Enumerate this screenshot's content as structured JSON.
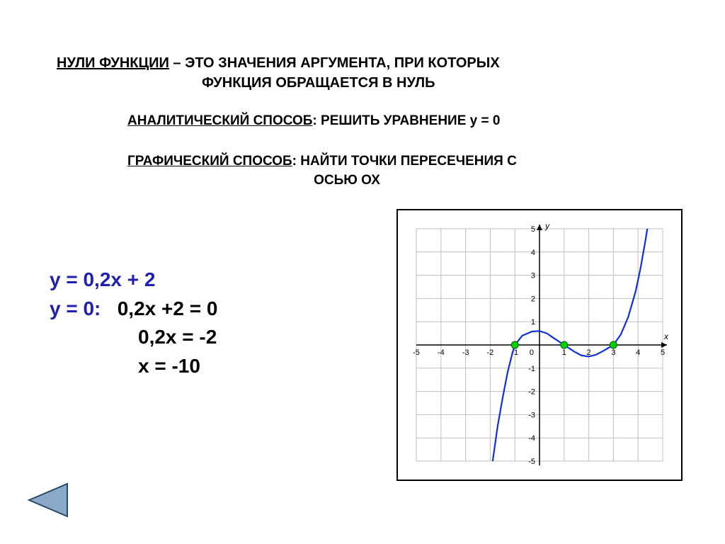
{
  "heading": {
    "term": "НУЛИ ФУНКЦИИ",
    "sep": " – ",
    "rest1": "ЭТО ЗНАЧЕНИЯ АРГУМЕНТА, ПРИ КОТОРЫХ",
    "rest2": "ФУНКЦИЯ ОБРАЩАЕТСЯ В НУЛЬ"
  },
  "analytic": {
    "label": "АНАЛИТИЧЕСКИЙ СПОСОБ",
    "text": ": РЕШИТЬ УРАВНЕНИЕ у = 0"
  },
  "graphic": {
    "label": "ГРАФИЧЕСКИЙ СПОСОБ",
    "text": ": НАЙТИ ТОЧКИ ПЕРЕСЕЧЕНИЯ С",
    "text2": "ОСЬЮ ОХ"
  },
  "equations": {
    "l1": "y = 0,2x + 2",
    "l2a": "y = 0:",
    "l2b": "   0,2x +2 = 0",
    "l3": "0,2x = -2",
    "l4": "x = -10"
  },
  "chart": {
    "type": "line",
    "background_color": "#ffffff",
    "grid_color": "#bfbfbf",
    "axis_color": "#000000",
    "curve_color": "#1030e0",
    "curve_width": 2.2,
    "zero_marker_fill": "#00d000",
    "zero_marker_stroke": "#006000",
    "zero_marker_radius": 5,
    "xlim": [
      -5,
      5
    ],
    "ylim": [
      -5,
      5
    ],
    "xtick_step": 1,
    "ytick_step": 1,
    "tick_fontsize": 11,
    "axis_labels": {
      "x": "x",
      "y": "y"
    },
    "zeros_x": [
      -1,
      1,
      3
    ],
    "curve_points": [
      [
        -1.9,
        -5.0
      ],
      [
        -1.7,
        -3.5
      ],
      [
        -1.5,
        -2.3
      ],
      [
        -1.3,
        -1.2
      ],
      [
        -1.1,
        -0.35
      ],
      [
        -1.0,
        0.0
      ],
      [
        -0.7,
        0.4
      ],
      [
        -0.3,
        0.58
      ],
      [
        0.0,
        0.6
      ],
      [
        0.3,
        0.5
      ],
      [
        0.6,
        0.28
      ],
      [
        1.0,
        0.0
      ],
      [
        1.4,
        -0.28
      ],
      [
        1.7,
        -0.45
      ],
      [
        2.0,
        -0.5
      ],
      [
        2.3,
        -0.42
      ],
      [
        2.6,
        -0.25
      ],
      [
        3.0,
        0.0
      ],
      [
        3.3,
        0.45
      ],
      [
        3.6,
        1.2
      ],
      [
        3.9,
        2.3
      ],
      [
        4.1,
        3.3
      ],
      [
        4.3,
        4.5
      ],
      [
        4.45,
        5.5
      ]
    ]
  },
  "nav": {
    "fill": "#8aa8c8",
    "stroke": "#2a4a6a"
  }
}
